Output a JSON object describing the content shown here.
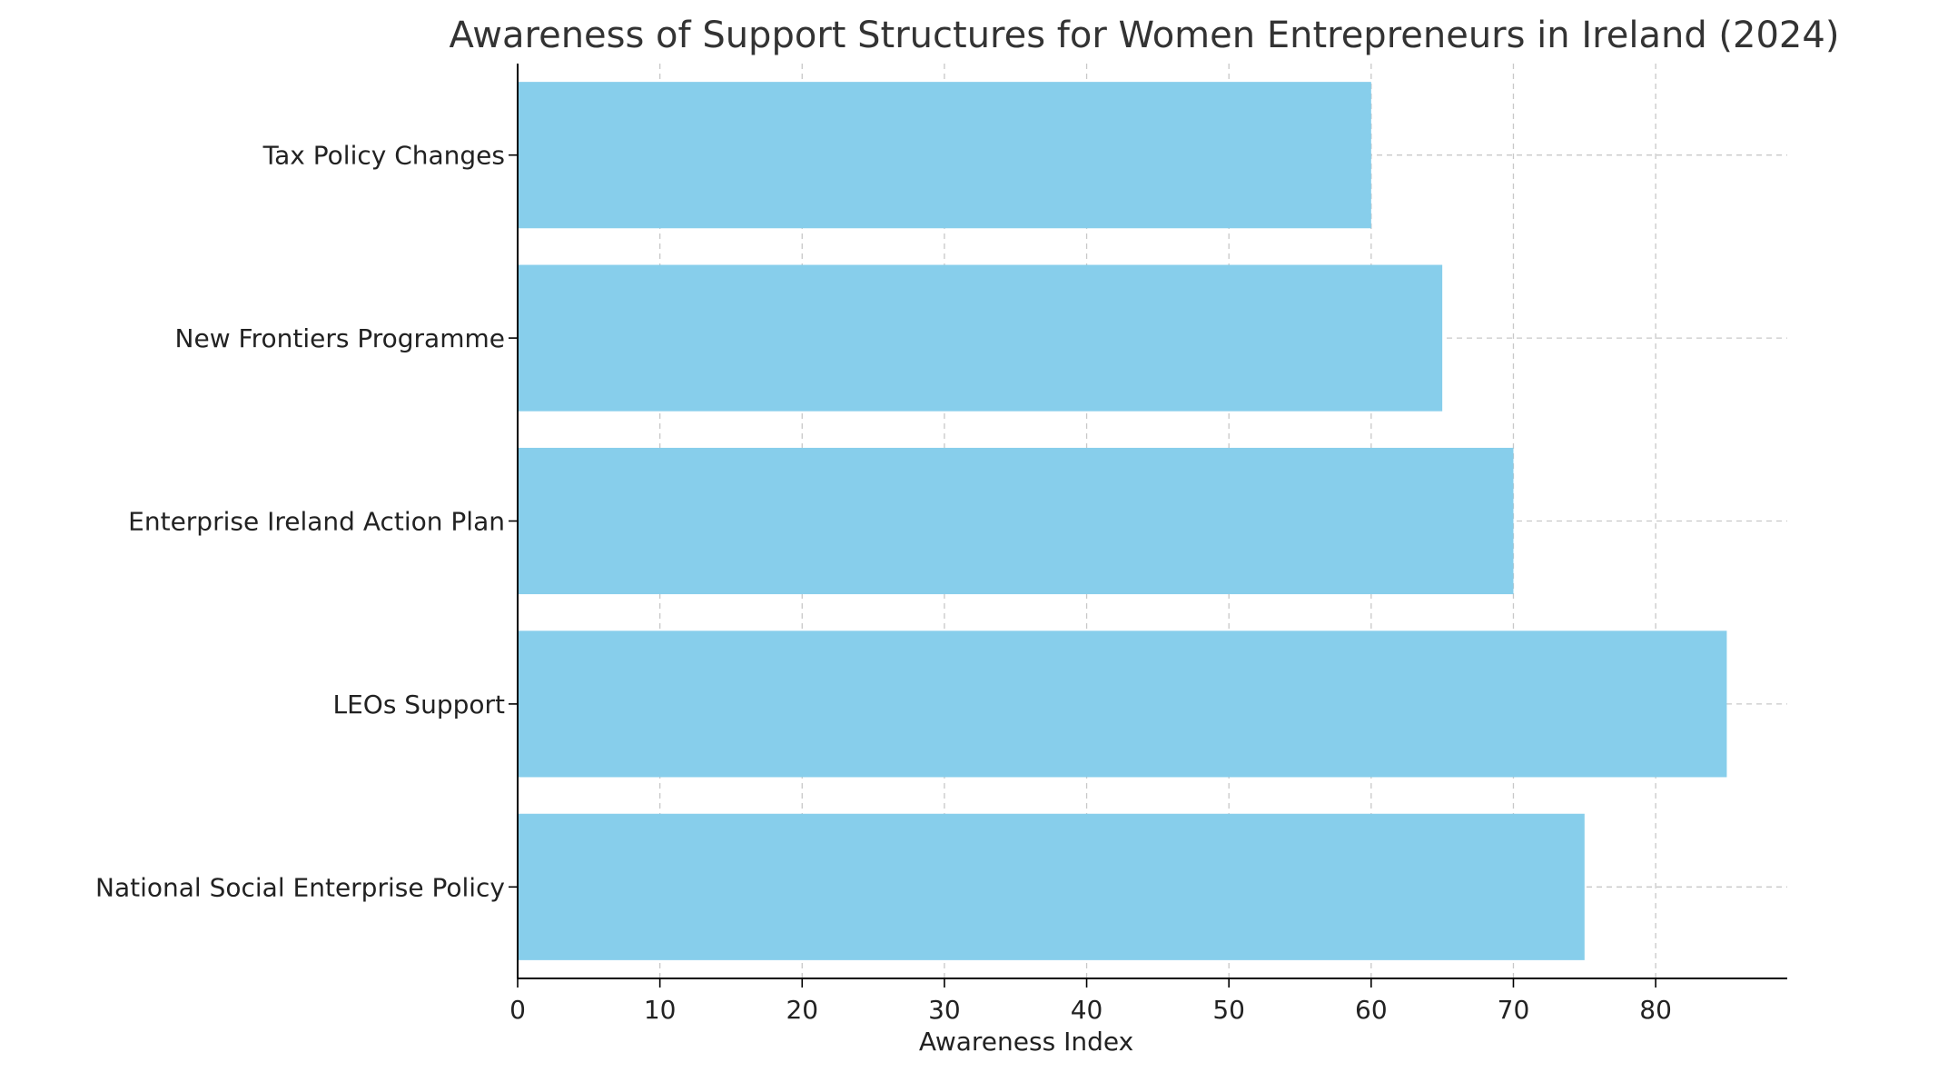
{
  "chart_data": {
    "type": "bar",
    "orientation": "horizontal",
    "title": "Awareness of Support Structures for Women Entrepreneurs in Ireland (2024)",
    "xlabel": "Awareness Index",
    "ylabel": "",
    "categories": [
      "National Social Enterprise Policy",
      "LEOs Support",
      "Enterprise Ireland Action Plan",
      "New Frontiers Programme",
      "Tax Policy Changes"
    ],
    "values": [
      75,
      85,
      70,
      65,
      60
    ],
    "xlim": [
      0,
      89.25
    ],
    "xticks": [
      0,
      10,
      20,
      30,
      40,
      50,
      60,
      70,
      80
    ],
    "grid": true,
    "bar_color": "#87CEEB"
  }
}
